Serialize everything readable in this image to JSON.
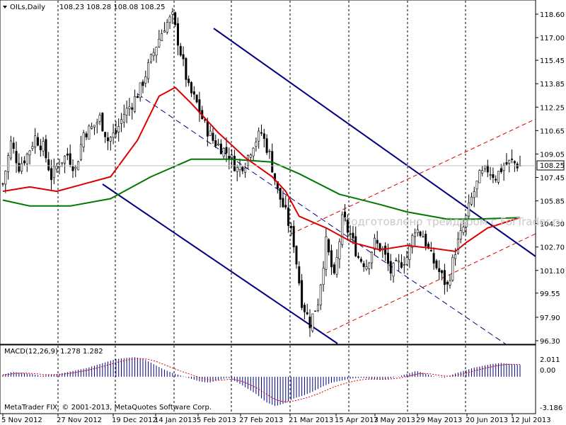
{
  "header": {
    "symbol_tf": "OILs,Daily",
    "ohlc": "108.23 108.28 108.08 108.25"
  },
  "macd": {
    "label": "MACD(12,26,9) 1.278 1.282",
    "levels": [
      "2.011",
      "0.00",
      "-3.186"
    ]
  },
  "copyright": "MetaTrader FIX, © 2001-2013, MetaQuotes Software Corp.",
  "watermark": "Подготовлено трейдером с ForTrader.ru",
  "current_price": "108.25",
  "colors": {
    "bull_candle": "#000000",
    "ma_fast": "#dd0000",
    "ma_slow": "#007700",
    "channel_main": "#000080",
    "channel_up": "#dd0000",
    "price_box": "#ffffff"
  },
  "chart_data": {
    "type": "candlestick",
    "title": "",
    "ylim": [
      96.3,
      118.6
    ],
    "price_ticks": [
      "118.60",
      "117.00",
      "115.45",
      "113.85",
      "112.25",
      "110.65",
      "109.05",
      "107.45",
      "105.85",
      "104.30",
      "102.70",
      "101.10",
      "99.55",
      "97.90",
      "96.30"
    ],
    "date_ticks": [
      "5 Nov 2012",
      "27 Nov 2012",
      "19 Dec 2012",
      "14 Jan 2013",
      "5 Feb 2013",
      "27 Feb 2013",
      "21 Mar 2013",
      "15 Apr 2013",
      "7 May 2013",
      "29 May 2013",
      "20 Jun 2013",
      "12 Jul 2013"
    ],
    "close_path": [
      [
        0,
        107.0
      ],
      [
        3,
        109.8
      ],
      [
        6,
        108.2
      ],
      [
        9,
        109.0
      ],
      [
        12,
        110.2
      ],
      [
        15,
        109.5
      ],
      [
        18,
        107.5
      ],
      [
        21,
        108.5
      ],
      [
        24,
        109.0
      ],
      [
        27,
        108.0
      ],
      [
        30,
        110.5
      ],
      [
        33,
        110.8
      ],
      [
        36,
        111.5
      ],
      [
        39,
        110.0
      ],
      [
        42,
        110.5
      ],
      [
        45,
        111.8
      ],
      [
        48,
        112.5
      ],
      [
        51,
        113.5
      ],
      [
        54,
        115.0
      ],
      [
        57,
        116.5
      ],
      [
        60,
        117.8
      ],
      [
        63,
        118.4
      ],
      [
        66,
        116.0
      ],
      [
        69,
        113.5
      ],
      [
        72,
        112.5
      ],
      [
        75,
        111.0
      ],
      [
        78,
        110.0
      ],
      [
        81,
        109.5
      ],
      [
        84,
        109.0
      ],
      [
        87,
        108.0
      ],
      [
        90,
        108.5
      ],
      [
        93,
        109.8
      ],
      [
        96,
        110.5
      ],
      [
        99,
        109.0
      ],
      [
        102,
        106.5
      ],
      [
        105,
        105.0
      ],
      [
        108,
        103.0
      ],
      [
        111,
        99.0
      ],
      [
        114,
        97.5
      ],
      [
        117,
        99.0
      ],
      [
        120,
        103.0
      ],
      [
        123,
        100.5
      ],
      [
        126,
        104.5
      ],
      [
        129,
        103.5
      ],
      [
        132,
        102.0
      ],
      [
        135,
        101.5
      ],
      [
        138,
        103.0
      ],
      [
        141,
        102.5
      ],
      [
        144,
        101.0
      ],
      [
        147,
        101.5
      ],
      [
        150,
        102.0
      ],
      [
        153,
        104.0
      ],
      [
        156,
        103.5
      ],
      [
        159,
        102.0
      ],
      [
        162,
        101.0
      ],
      [
        165,
        100.0
      ],
      [
        168,
        102.5
      ],
      [
        171,
        104.0
      ],
      [
        174,
        106.0
      ],
      [
        177,
        107.5
      ],
      [
        180,
        108.0
      ],
      [
        183,
        107.5
      ],
      [
        186,
        108.3
      ],
      [
        189,
        108.5
      ],
      [
        192,
        108.25
      ]
    ],
    "ma_fast": [
      [
        0,
        106.5
      ],
      [
        10,
        106.8
      ],
      [
        20,
        106.5
      ],
      [
        30,
        107.0
      ],
      [
        40,
        107.5
      ],
      [
        50,
        110.0
      ],
      [
        58,
        113.0
      ],
      [
        64,
        113.6
      ],
      [
        70,
        112.5
      ],
      [
        80,
        110.5
      ],
      [
        90,
        108.8
      ],
      [
        100,
        107.5
      ],
      [
        105,
        106.5
      ],
      [
        110,
        104.8
      ],
      [
        120,
        104.0
      ],
      [
        130,
        103.0
      ],
      [
        140,
        102.5
      ],
      [
        150,
        102.8
      ],
      [
        160,
        102.6
      ],
      [
        168,
        102.4
      ],
      [
        172,
        103.0
      ],
      [
        180,
        104.0
      ],
      [
        192,
        104.7
      ]
    ],
    "ma_slow": [
      [
        0,
        105.9
      ],
      [
        10,
        105.5
      ],
      [
        25,
        105.5
      ],
      [
        40,
        106.0
      ],
      [
        55,
        107.5
      ],
      [
        70,
        108.7
      ],
      [
        85,
        108.7
      ],
      [
        100,
        108.5
      ],
      [
        110,
        107.7
      ],
      [
        125,
        106.3
      ],
      [
        140,
        105.6
      ],
      [
        150,
        105.1
      ],
      [
        165,
        104.6
      ],
      [
        175,
        104.6
      ],
      [
        192,
        104.7
      ]
    ],
    "macd": {
      "ylim": [
        -3.186,
        2.011
      ],
      "values": [
        0.2,
        0.5,
        0.4,
        0.3,
        0.1,
        0.2,
        0.3,
        0.5,
        0.7,
        0.9,
        1.2,
        1.5,
        1.8,
        1.9,
        2.0,
        1.8,
        1.3,
        0.8,
        0.4,
        0.1,
        -0.2,
        -0.5,
        -0.6,
        -0.3,
        -0.1,
        -0.6,
        -1.2,
        -1.8,
        -2.6,
        -3.0,
        -2.7,
        -2.2,
        -1.9,
        -1.5,
        -1.0,
        -0.6,
        -0.4,
        -0.2,
        -0.1,
        -0.2,
        -0.3,
        -0.2,
        0.0,
        0.3,
        0.6,
        0.3,
        0.0,
        -0.1,
        0.3,
        0.6,
        0.9,
        1.1,
        1.3,
        1.4,
        1.3,
        1.2
      ]
    }
  }
}
